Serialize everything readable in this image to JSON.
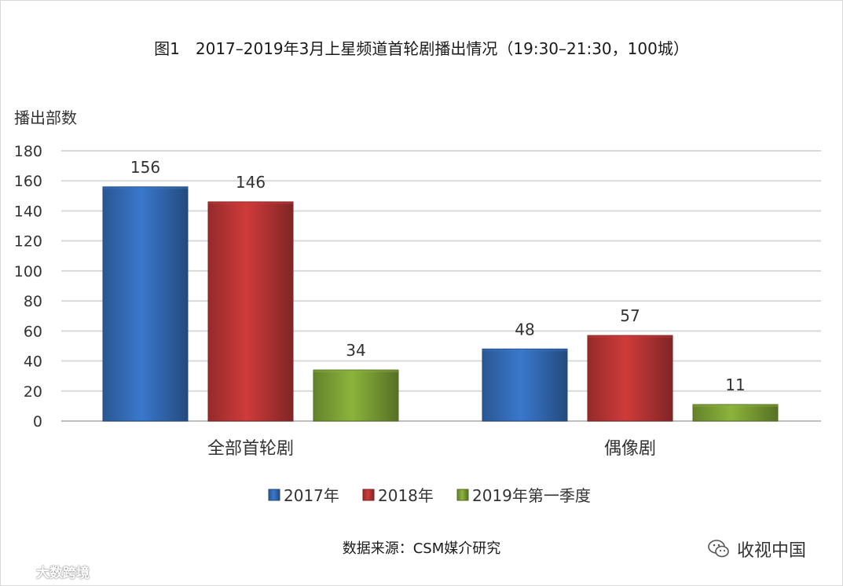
{
  "title": "图1　2017–2019年3月上星频道首轮剧播出情况（19:30–21:30，100城）",
  "source": "数据来源：CSM媒介研究",
  "watermarks": {
    "left": "大数跨境",
    "right": "收视中国",
    "left_icon": "kuajing-logo-icon",
    "right_icon": "wechat-icon"
  },
  "colors": {
    "2017": "#3a78cc",
    "2018": "#cf3b3b",
    "2019": "#8bb43c",
    "grid": "#d9d9d9",
    "axis": "#bfbfbf"
  },
  "chart_data": {
    "type": "bar",
    "title": "图1　2017–2019年3月上星频道首轮剧播出情况（19:30–21:30，100城）",
    "ylabel": "播出部数",
    "xlabel": "",
    "categories": [
      "全部首轮剧",
      "偶像剧"
    ],
    "series": [
      {
        "name": "2017年",
        "values": [
          156,
          48
        ]
      },
      {
        "name": "2018年",
        "values": [
          146,
          57
        ]
      },
      {
        "name": "2019年第一季度",
        "values": [
          34,
          11
        ]
      }
    ],
    "ylim": [
      0,
      180
    ],
    "yticks": [
      0,
      20,
      40,
      60,
      80,
      100,
      120,
      140,
      160,
      180
    ],
    "grid": true,
    "legend": "bottom",
    "data_labels": true
  }
}
